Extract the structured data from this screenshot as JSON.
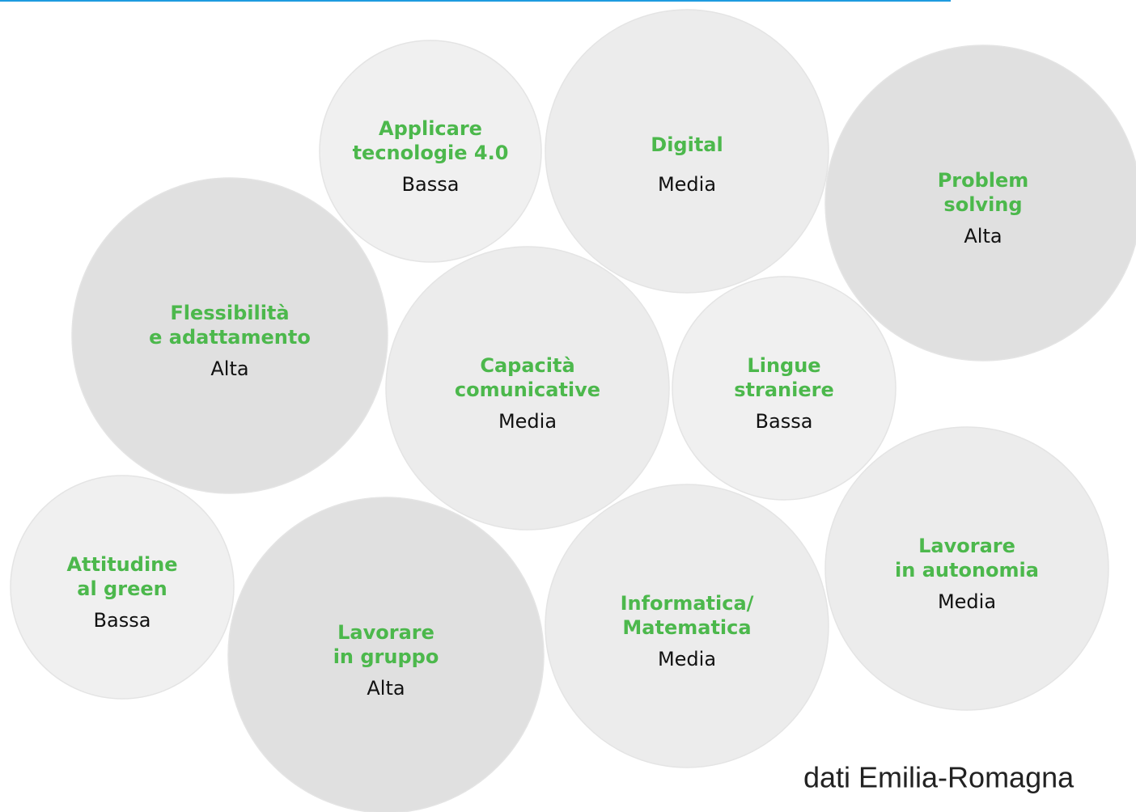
{
  "nodes": [
    {
      "label": [
        "Applicare",
        "tecnologie 4.0"
      ],
      "level": "Bassa"
    },
    {
      "label": [
        "Digital"
      ],
      "level": "Media"
    },
    {
      "label": [
        "Problem",
        "solving"
      ],
      "level": "Alta"
    },
    {
      "label": [
        "Flessibilità",
        "e adattamento"
      ],
      "level": "Alta"
    },
    {
      "label": [
        "Capacità",
        "comunicative"
      ],
      "level": "Media"
    },
    {
      "label": [
        "Lingue",
        "straniere"
      ],
      "level": "Bassa"
    },
    {
      "label": [
        "Attitudine",
        "al green"
      ],
      "level": "Bassa"
    },
    {
      "label": [
        "Lavorare",
        "in gruppo"
      ],
      "level": "Alta"
    },
    {
      "label": [
        "Informatica/",
        "Matematica"
      ],
      "level": "Media"
    },
    {
      "label": [
        "Lavorare",
        "in autonomia"
      ],
      "level": "Media"
    }
  ],
  "footer": "dati Emilia-Romagna"
}
